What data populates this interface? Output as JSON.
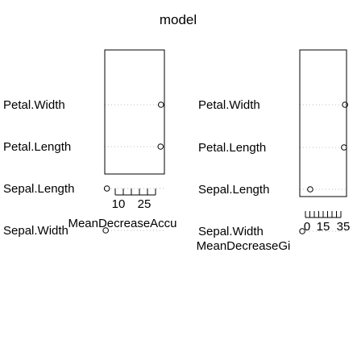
{
  "title": "model",
  "chart_data": [
    {
      "type": "dotchart",
      "xlabel": "MeanDecreaseAccu",
      "categories": [
        "Petal.Width",
        "Petal.Length",
        "Sepal.Length",
        "Sepal.Width"
      ],
      "values": [
        43.5,
        43.2,
        3.6,
        2.7
      ],
      "xlim": [
        2,
        46
      ],
      "ticks": [
        10,
        25
      ],
      "tick_marks": [
        5,
        10,
        15,
        20,
        25,
        30
      ],
      "grid": "dotted"
    },
    {
      "type": "dotchart",
      "xlabel": "MeanDecreaseGi",
      "categories": [
        "Petal.Width",
        "Petal.Length",
        "Sepal.Length",
        "Sepal.Width"
      ],
      "values": [
        45.5,
        44.5,
        10.5,
        2.5
      ],
      "xlim": [
        0,
        47
      ],
      "ticks": [
        0,
        15,
        35
      ],
      "tick_marks": [
        0,
        5,
        10,
        15,
        20,
        25,
        30,
        35,
        40
      ],
      "grid": "dotted"
    }
  ]
}
